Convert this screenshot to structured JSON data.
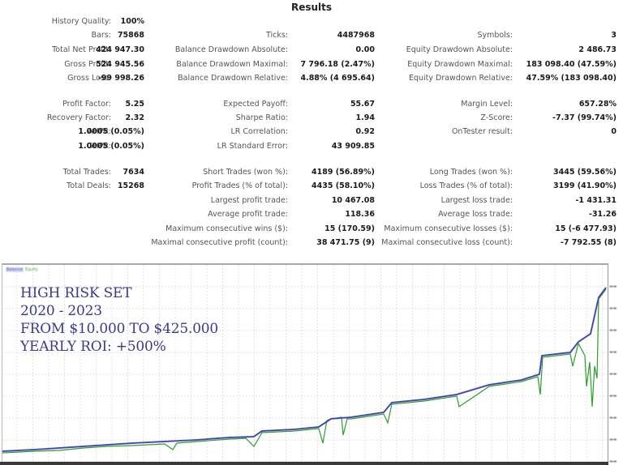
{
  "header": {
    "title": "Results"
  },
  "stats": {
    "col1": [
      {
        "label": "History Quality:",
        "value": "100%"
      },
      {
        "label": "Bars:",
        "value": "75868"
      },
      {
        "label": "Total Net Profit:",
        "value": "424 947.30"
      },
      {
        "label": "Gross Profit:",
        "value": "524 945.56"
      },
      {
        "label": "Gross Loss:",
        "value": "-99 998.26"
      },
      {
        "label": "Profit Factor:",
        "value": "5.25"
      },
      {
        "label": "Recovery Factor:",
        "value": "2.32"
      },
      {
        "label": "AHPR:",
        "value": "1.0005 (0.05%)"
      },
      {
        "label": "GHPR:",
        "value": "1.0005 (0.05%)"
      },
      {
        "label": "Total Trades:",
        "value": "7634"
      },
      {
        "label": "Total Deals:",
        "value": "15268"
      }
    ],
    "col2": [
      {
        "label": "Ticks:",
        "value": "4487968"
      },
      {
        "label": "Balance Drawdown Absolute:",
        "value": "0.00"
      },
      {
        "label": "Balance Drawdown Maximal:",
        "value": "7 796.18 (2.47%)"
      },
      {
        "label": "Balance Drawdown Relative:",
        "value": "4.88% (4 695.64)"
      },
      {
        "label": "Expected Payoff:",
        "value": "55.67"
      },
      {
        "label": "Sharpe Ratio:",
        "value": "1.94"
      },
      {
        "label": "LR Correlation:",
        "value": "0.92"
      },
      {
        "label": "LR Standard Error:",
        "value": "43 909.85"
      },
      {
        "label": "Short Trades (won %):",
        "value": "4189 (56.89%)"
      },
      {
        "label": "Profit Trades (% of total):",
        "value": "4435 (58.10%)"
      },
      {
        "label": "Largest profit trade:",
        "value": "10 467.08"
      },
      {
        "label": "Average profit trade:",
        "value": "118.36"
      },
      {
        "label": "Maximum consecutive wins ($):",
        "value": "15 (170.59)"
      },
      {
        "label": "Maximal consecutive profit (count):",
        "value": "38 471.75 (9)"
      }
    ],
    "col3": [
      {
        "label": "Symbols:",
        "value": "3"
      },
      {
        "label": "Equity Drawdown Absolute:",
        "value": "2 486.73"
      },
      {
        "label": "Equity Drawdown Maximal:",
        "value": "183 098.40 (47.59%)"
      },
      {
        "label": "Equity Drawdown Relative:",
        "value": "47.59% (183 098.40)"
      },
      {
        "label": "Margin Level:",
        "value": "657.28%"
      },
      {
        "label": "Z-Score:",
        "value": "-7.37 (99.74%)"
      },
      {
        "label": "OnTester result:",
        "value": "0"
      },
      {
        "label": "Long Trades (won %):",
        "value": "3445 (59.56%)"
      },
      {
        "label": "Loss Trades (% of total):",
        "value": "3199 (41.90%)"
      },
      {
        "label": "Largest loss trade:",
        "value": "-1 431.31"
      },
      {
        "label": "Average loss trade:",
        "value": "-31.26"
      },
      {
        "label": "Maximum consecutive losses ($):",
        "value": "15 (-6 477.93)"
      },
      {
        "label": "Maximal consecutive loss (count):",
        "value": "-7 792.55 (8)"
      }
    ]
  },
  "chart": {
    "legend": {
      "balance": "Balance",
      "equity": "Equity"
    },
    "overlay_lines": [
      "HIGH RISK SET",
      "2020 - 2023",
      "FROM $10.000 TO $425.000",
      "YEARLY ROI: +500%"
    ],
    "colors": {
      "balance": "#5a5ad2",
      "equity": "#2aa02a",
      "overlay_text": "#3a3a8c",
      "grid": "#d6d6d6"
    }
  },
  "chart_data": {
    "type": "line",
    "title": "",
    "xlabel": "",
    "ylabel": "",
    "series": [
      {
        "name": "Balance",
        "color": "#5a5ad2",
        "values": [
          10000,
          22000,
          36000,
          50000,
          64000,
          90000,
          105000,
          125000,
          150000,
          170000,
          210000,
          250000,
          300000,
          330000,
          425000
        ]
      },
      {
        "name": "Equity",
        "color": "#2aa02a",
        "values": [
          10000,
          20000,
          33000,
          44000,
          58000,
          70000,
          96000,
          110000,
          140000,
          160000,
          175000,
          220000,
          145000,
          260000,
          425000
        ]
      }
    ],
    "x": [
      0,
      1,
      2,
      3,
      4,
      5,
      6,
      7,
      8,
      9,
      10,
      11,
      12,
      13,
      14
    ],
    "annotations": [
      "HIGH RISK SET",
      "2020 - 2023",
      "FROM $10.000 TO $425.000",
      "YEARLY ROI: +500%"
    ],
    "grid": true,
    "legend_position": "top-left"
  }
}
